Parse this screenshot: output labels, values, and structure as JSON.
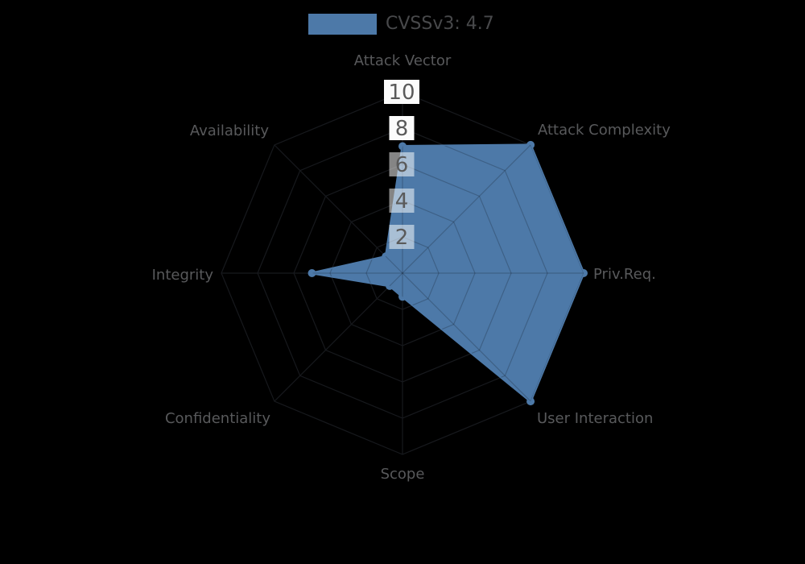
{
  "legend": {
    "label": "CVSSv3: 4.7",
    "swatch_color": "#4d79a8"
  },
  "chart_data": {
    "type": "radar",
    "title": "",
    "categories": [
      "Attack Vector",
      "Attack Complexity",
      "Priv.Req.",
      "User Interaction",
      "Scope",
      "Confidentiality",
      "Integrity",
      "Availability"
    ],
    "series": [
      {
        "name": "CVSSv3: 4.7",
        "values": [
          7.0,
          10.0,
          10.0,
          10.0,
          1.3,
          1.0,
          5.0,
          1.3
        ]
      }
    ],
    "ticks": [
      2,
      4,
      6,
      8,
      10
    ],
    "rlim": [
      0,
      10
    ],
    "grid": true,
    "legend_position": "top-center",
    "colors": {
      "background": "#000000",
      "series_fill": "#4d79a8",
      "grid_on_background": "#17191d",
      "grid_over_fill": "rgba(0,0,0,0.2)",
      "tick_box_outside_fill": "#fbfbfb",
      "tick_box_over_fill": "rgba(255,255,255,0.52)",
      "tick_text": "#5a5a5a",
      "axis_label_text": "#58595b",
      "legend_text": "#48494b"
    }
  }
}
